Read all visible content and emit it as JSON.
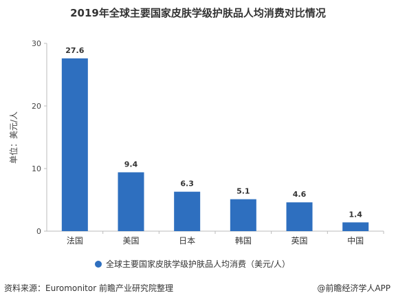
{
  "chart_data": {
    "type": "bar",
    "title": "2019年全球主要国家皮肤学级护肤品人均消费对比情况",
    "categories": [
      "法国",
      "美国",
      "日本",
      "韩国",
      "英国",
      "中国"
    ],
    "series": [
      {
        "name": "全球主要国家皮肤学级护肤品人均消费（美元/人）",
        "values": [
          27.6,
          9.4,
          6.3,
          5.1,
          4.6,
          1.4
        ]
      }
    ],
    "ylabel": "单位：美元/人",
    "ylim": [
      0,
      30
    ],
    "yticks": [
      0,
      10,
      20,
      30
    ],
    "grid": false,
    "legend": "bottom",
    "bar_color": "#2e6fbf"
  },
  "footer": {
    "source": "资料来源：Euromonitor 前瞻产业研究院整理",
    "credit": "@前瞻经济学人APP"
  }
}
